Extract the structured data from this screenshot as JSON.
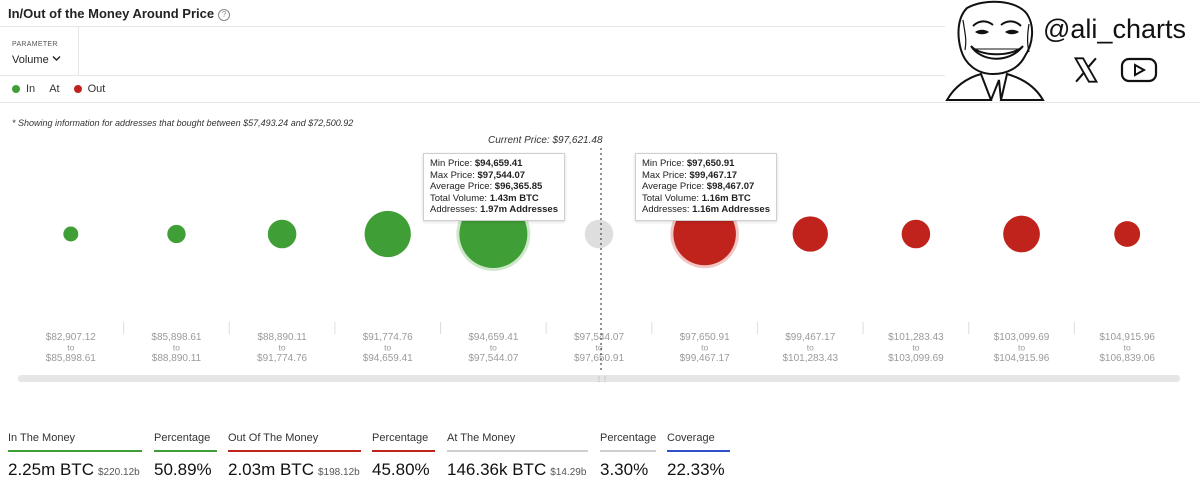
{
  "header": {
    "title": "In/Out of the Money Around Price",
    "help_icon": "?"
  },
  "parameter": {
    "label": "PARAMETER",
    "value": "Volume"
  },
  "legend": [
    {
      "label": "In",
      "color": "#3f9e36"
    },
    {
      "label": "At",
      "color": "#d9d9d9"
    },
    {
      "label": "Out",
      "color": "#c0221c"
    }
  ],
  "note": "* Showing information for addresses that bought between $57,493.24 and $72,500.92",
  "current_price_label": "Current Price: $97,621.48",
  "watermark": {
    "handle": "@ali_charts",
    "icons": [
      "x-icon",
      "youtube-icon"
    ],
    "avatar": "trollface-avatar"
  },
  "chart_data": {
    "type": "scatter",
    "title": "",
    "categories": [
      {
        "from": "$82,907.12",
        "to": "$85,898.61"
      },
      {
        "from": "$85,898.61",
        "to": "$88,890.11"
      },
      {
        "from": "$88,890.11",
        "to": "$91,774.76"
      },
      {
        "from": "$91,774.76",
        "to": "$94,659.41"
      },
      {
        "from": "$94,659.41",
        "to": "$97,544.07"
      },
      {
        "from": "$97,544.07",
        "to": "$97,650.91"
      },
      {
        "from": "$97,650.91",
        "to": "$99,467.17"
      },
      {
        "from": "$99,467.17",
        "to": "$101,283.43"
      },
      {
        "from": "$101,283.43",
        "to": "$103,099.69"
      },
      {
        "from": "$103,099.69",
        "to": "$104,915.96"
      },
      {
        "from": "$104,915.96",
        "to": "$106,839.06"
      }
    ],
    "status": [
      "In",
      "In",
      "In",
      "In",
      "In",
      "At",
      "Out",
      "Out",
      "Out",
      "Out",
      "Out"
    ],
    "relative_size": [
      0.22,
      0.27,
      0.42,
      0.68,
      1.0,
      0.42,
      0.92,
      0.52,
      0.42,
      0.54,
      0.38
    ],
    "colors": {
      "In": "#3f9e36",
      "At": "#dedede",
      "Out": "#c0221c"
    },
    "highlighted": [
      4,
      6
    ],
    "to_word": "to",
    "current_price": "$97,621.48",
    "tooltips": [
      {
        "bin_index": 4,
        "rows": [
          {
            "label": "Min Price:",
            "value": "$94,659.41"
          },
          {
            "label": "Max Price:",
            "value": "$97,544.07"
          },
          {
            "label": "Average Price:",
            "value": "$96,365.85"
          },
          {
            "label": "Total Volume:",
            "value": "1.43m BTC"
          },
          {
            "label": "Addresses:",
            "value": "1.97m Addresses"
          }
        ]
      },
      {
        "bin_index": 6,
        "rows": [
          {
            "label": "Min Price:",
            "value": "$97,650.91"
          },
          {
            "label": "Max Price:",
            "value": "$99,467.17"
          },
          {
            "label": "Average Price:",
            "value": "$98,467.07"
          },
          {
            "label": "Total Volume:",
            "value": "1.16m BTC"
          },
          {
            "label": "Addresses:",
            "value": "1.16m Addresses"
          }
        ]
      }
    ]
  },
  "stats": [
    {
      "label": "In The Money",
      "value": "2.25m BTC",
      "sub": "$220.12b",
      "color": "#3f9e36"
    },
    {
      "label": "Percentage",
      "value": "50.89%",
      "sub": "",
      "color": "#3f9e36"
    },
    {
      "label": "Out Of The Money",
      "value": "2.03m BTC",
      "sub": "$198.12b",
      "color": "#c0221c"
    },
    {
      "label": "Percentage",
      "value": "45.80%",
      "sub": "",
      "color": "#c0221c"
    },
    {
      "label": "At The Money",
      "value": "146.36k BTC",
      "sub": "$14.29b",
      "color": "#cfcfcf"
    },
    {
      "label": "Percentage",
      "value": "3.30%",
      "sub": "",
      "color": "#cfcfcf"
    },
    {
      "label": "Coverage",
      "value": "22.33%",
      "sub": "",
      "color": "#2f4fc9"
    }
  ]
}
